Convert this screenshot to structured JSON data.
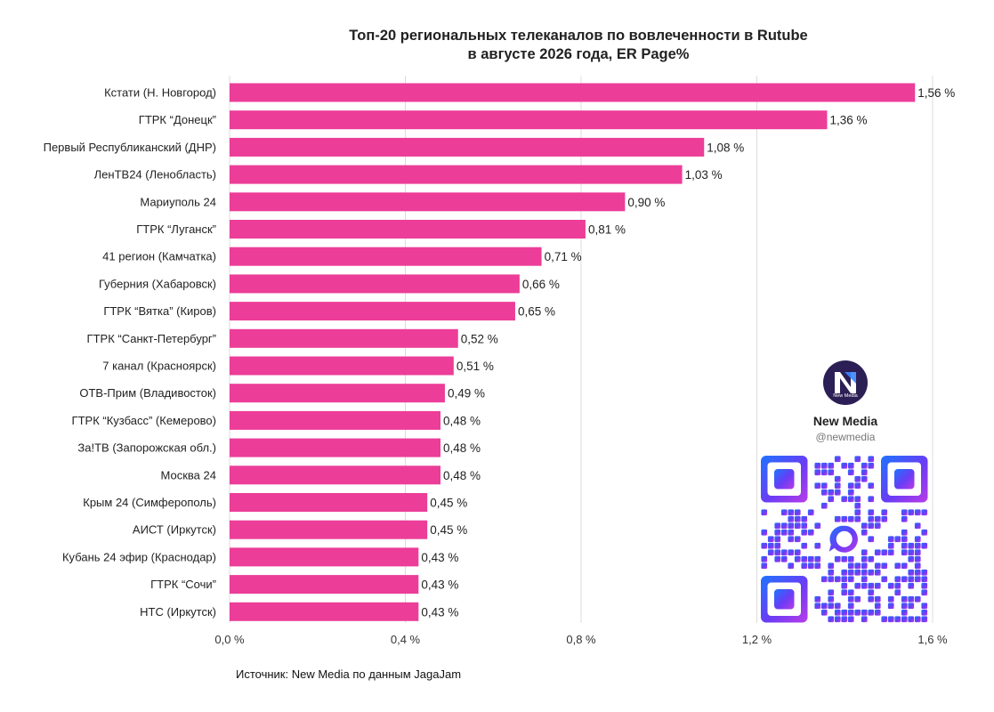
{
  "title_line1": "Топ-20 региональных телеканалов по вовлеченности в Rutube",
  "title_line2": "в августе 2026 года, ER Page%",
  "source": "Источник: New Media по данным JagaJam",
  "brand": {
    "name": "New Media",
    "handle": "@newmedia",
    "logo_text": "New Media",
    "logo_icon": "new-media-logo-icon",
    "qr_icon": "qr-code-icon"
  },
  "colors": {
    "bar": "#ec3d98",
    "grid": "#dddddd",
    "logo_bg": "#2b1f55",
    "qr_gradient": [
      "#1e74ff",
      "#6a3cf5",
      "#b93ce8"
    ]
  },
  "chart_data": {
    "type": "bar",
    "orientation": "horizontal",
    "categories": [
      "Кстати (Н. Новгород)",
      "ГТРК “Донецк”",
      "Первый Республиканский (ДНР)",
      "ЛенТВ24 (Ленобласть)",
      "Мариуполь 24",
      "ГТРК “Луганск”",
      "41 регион (Камчатка)",
      "Губерния (Хабаровск)",
      "ГТРК “Вятка” (Киров)",
      "ГТРК “Санкт-Петербург”",
      "7 канал (Красноярск)",
      "ОТВ-Прим (Владивосток)",
      "ГТРК “Кузбасс” (Кемерово)",
      "За!ТВ (Запорожская обл.)",
      "Москва 24",
      "Крым 24 (Симферополь)",
      "АИСТ (Иркутск)",
      "Кубань 24 эфир (Краснодар)",
      "ГТРК “Сочи”",
      "НТС (Иркутск)"
    ],
    "values": [
      1.56,
      1.36,
      1.08,
      1.03,
      0.9,
      0.81,
      0.71,
      0.66,
      0.65,
      0.52,
      0.51,
      0.49,
      0.48,
      0.48,
      0.48,
      0.45,
      0.45,
      0.43,
      0.43,
      0.43
    ],
    "value_labels": [
      "1,56 %",
      "1,36 %",
      "1,08 %",
      "1,03 %",
      "0,90 %",
      "0,81 %",
      "0,71 %",
      "0,66 %",
      "0,65 %",
      "0,52 %",
      "0,51 %",
      "0,49 %",
      "0,48 %",
      "0,48 %",
      "0,48 %",
      "0,45 %",
      "0,45 %",
      "0,43 %",
      "0,43 %",
      "0,43 %"
    ],
    "xlim": [
      0,
      1.6
    ],
    "xticks": [
      0,
      0.4,
      0.8,
      1.2,
      1.6
    ],
    "xtick_labels": [
      "0,0 %",
      "0,4 %",
      "0,8 %",
      "1,2 %",
      "1,6 %"
    ],
    "grid": true,
    "legend": "none"
  }
}
